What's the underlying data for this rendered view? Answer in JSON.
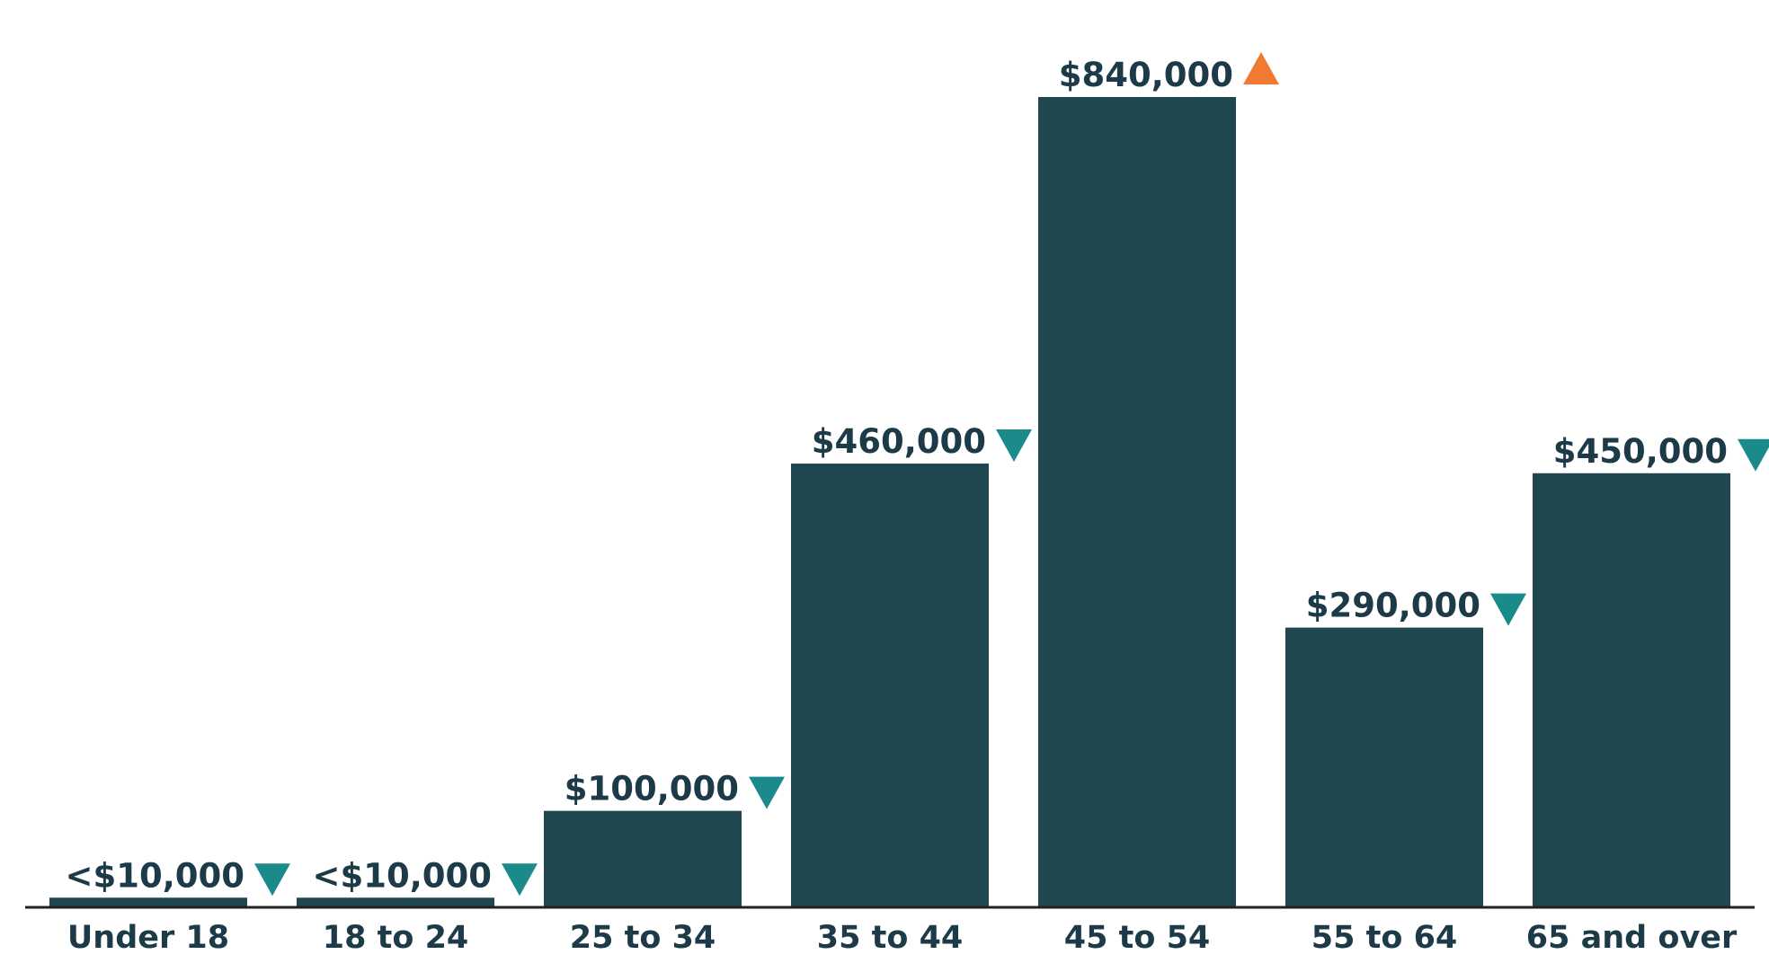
{
  "chart_data": {
    "type": "bar",
    "title": "",
    "xlabel": "",
    "ylabel": "",
    "ylim": [
      0,
      840000
    ],
    "grid": false,
    "legend": "none",
    "categories": [
      "Under 18",
      "18 to 24",
      "25 to 34",
      "35 to 44",
      "45 to 54",
      "55 to 64",
      "65 and over"
    ],
    "values": [
      10000,
      10000,
      100000,
      460000,
      840000,
      290000,
      450000
    ],
    "value_labels": [
      "<$10,000",
      "<$10,000",
      "$100,000",
      "$460,000",
      "$840,000",
      "$290,000",
      "$450,000"
    ],
    "trend_markers": [
      "down",
      "down",
      "down",
      "down",
      "up",
      "down",
      "down"
    ],
    "colors": {
      "bar": "#1f4750",
      "text": "#1c3a47",
      "axis": "#222222",
      "trend_up": "#f07a32",
      "trend_down": "#1a8a8a"
    }
  }
}
